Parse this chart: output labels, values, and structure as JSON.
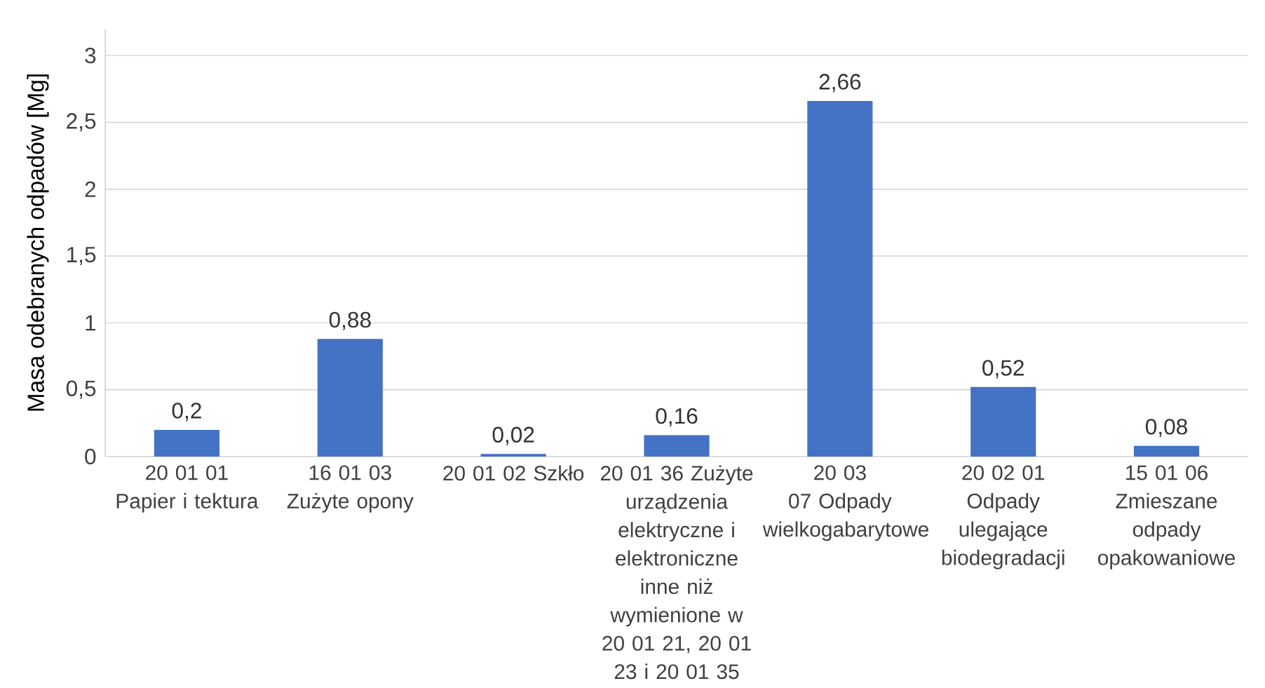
{
  "chart_data": {
    "type": "bar",
    "ylabel": "Masa odebranych odpadów [Mg]",
    "categories": [
      "20 01 01  Papier i tektura",
      "16 01 03 Zużyte opony",
      "20 01 02 Szkło",
      "20 01 36 Zużyte urządzenia elektryczne i elektroniczne inne niż wymienione w 20 01 21, 20 01 23 i 20 01 35",
      "20 03 07 Odpady wielkogabarytowe",
      "20 02 01 Odpady ulegające biodegradacji",
      "15 01 06 Zmieszane odpady opakowaniowe"
    ],
    "values": [
      0.2,
      0.88,
      0.02,
      0.16,
      2.66,
      0.52,
      0.08
    ],
    "value_labels": [
      "0,2",
      "0,88",
      "0,02",
      "0,16",
      "2,66",
      "0,52",
      "0,08"
    ],
    "color": "#4472c4",
    "ylim": [
      0,
      3.2
    ],
    "yticks": [
      0,
      {
        "value": 0.5,
        "label": "0,5"
      },
      1,
      {
        "value": 1.5,
        "label": "1,5"
      },
      2,
      {
        "value": 2.5,
        "label": "2,5"
      },
      3
    ],
    "grid": "y"
  }
}
